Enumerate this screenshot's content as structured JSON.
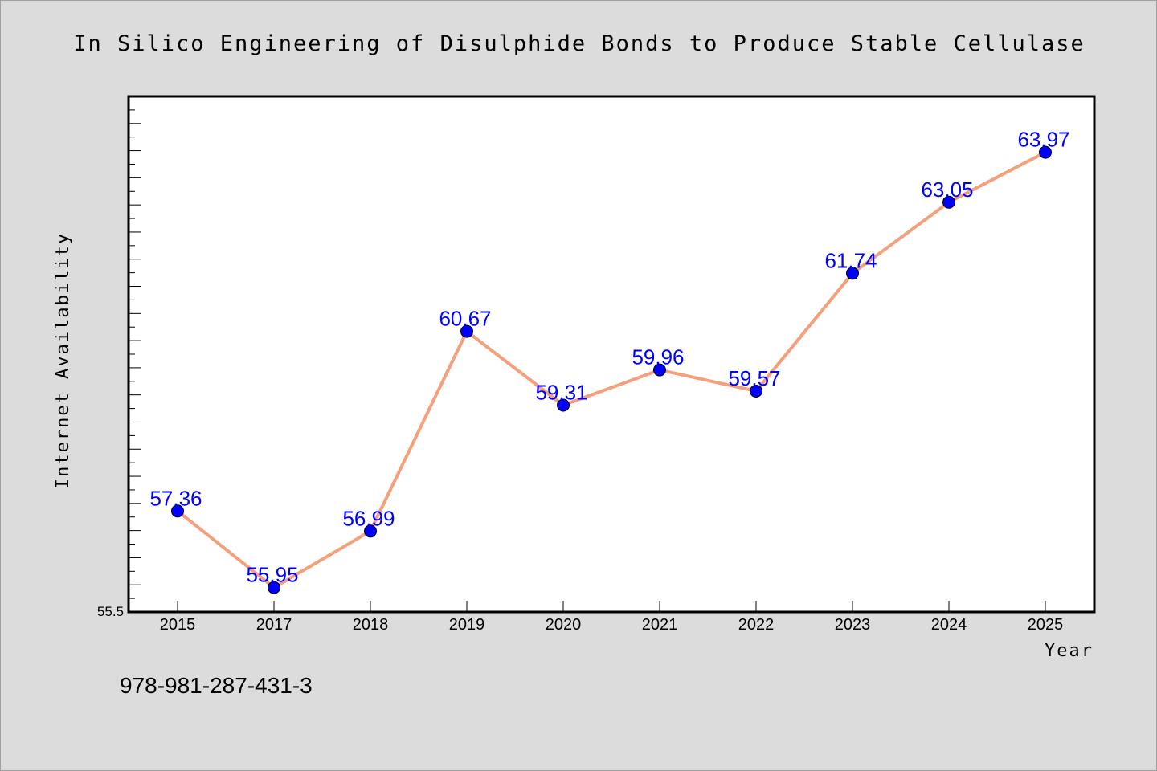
{
  "chart_data": {
    "type": "line",
    "title": "In Silico Engineering of Disulphide Bonds to Produce Stable Cellulase",
    "xlabel": "Year",
    "ylabel": "Internet Availability",
    "categories": [
      "2015",
      "2017",
      "2018",
      "2019",
      "2020",
      "2021",
      "2022",
      "2023",
      "2024",
      "2025"
    ],
    "series": [
      {
        "values": [
          57.36,
          55.95,
          56.99,
          60.67,
          59.31,
          59.96,
          59.57,
          61.74,
          63.05,
          63.97
        ]
      }
    ],
    "ylim": [
      55.5,
      65.0
    ],
    "ytick_label": "55.5",
    "grid": false,
    "legend": "none",
    "colors": {
      "line": "#f4a07c",
      "marker": "#0000ff",
      "label": "#0000ff",
      "background": "#dcdcdc",
      "plot_background": "#ffffff"
    }
  },
  "footnote": "978-981-287-431-3"
}
